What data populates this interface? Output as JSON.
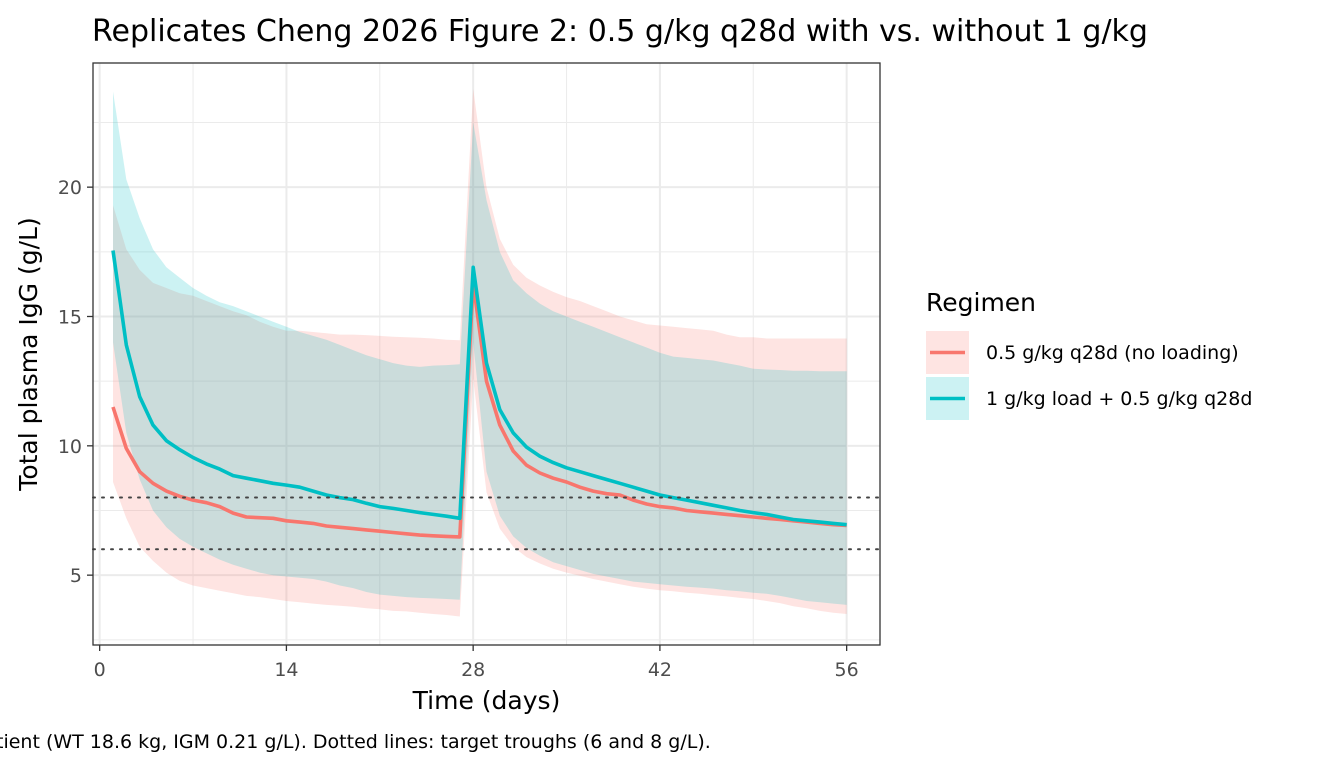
{
  "chart_data": {
    "type": "line",
    "title": "Replicates Cheng 2026 Figure 2: 0.5 g/kg q28d with vs. without 1 g/kg",
    "caption": "tient (WT 18.6 kg, IGM 0.21 g/L). Dotted lines: target troughs (6 and 8 g/L).",
    "xlabel": "Time (days)",
    "ylabel": "Total plasma IgG (g/L)",
    "xlim": [
      -0.5,
      58.5
    ],
    "ylim": [
      2.3,
      24.8
    ],
    "xticks": [
      0,
      14,
      28,
      42,
      56
    ],
    "xtick_labels": [
      "0",
      "14",
      "28",
      "42",
      "56"
    ],
    "yticks": [
      5,
      10,
      15,
      20
    ],
    "ytick_labels": [
      "5",
      "10",
      "15",
      "20"
    ],
    "reference_lines": [
      6,
      8
    ],
    "legend": {
      "title": "Regimen",
      "position": "right"
    },
    "x": [
      1,
      2,
      3,
      4,
      5,
      6,
      7,
      8,
      9,
      10,
      11,
      12,
      13,
      14,
      15,
      16,
      17,
      18,
      19,
      20,
      21,
      22,
      23,
      24,
      25,
      26,
      27,
      28,
      29,
      30,
      31,
      32,
      33,
      34,
      35,
      36,
      37,
      38,
      39,
      40,
      41,
      42,
      43,
      44,
      45,
      46,
      47,
      48,
      49,
      50,
      51,
      52,
      53,
      54,
      55,
      56
    ],
    "series": [
      {
        "name": "0.5 g/kg q28d (no loading)",
        "color": "#F8766D",
        "values": [
          11.5,
          9.9,
          9.0,
          8.55,
          8.25,
          8.05,
          7.9,
          7.8,
          7.65,
          7.4,
          7.25,
          7.22,
          7.2,
          7.1,
          7.05,
          7.0,
          6.9,
          6.85,
          6.8,
          6.75,
          6.7,
          6.65,
          6.6,
          6.55,
          6.52,
          6.5,
          6.48,
          16.3,
          12.5,
          10.8,
          9.8,
          9.25,
          8.95,
          8.75,
          8.6,
          8.4,
          8.25,
          8.15,
          8.1,
          7.9,
          7.75,
          7.65,
          7.6,
          7.5,
          7.45,
          7.4,
          7.35,
          7.3,
          7.25,
          7.2,
          7.15,
          7.1,
          7.05,
          7.0,
          6.95,
          6.92
        ],
        "lower": [
          8.6,
          7.2,
          6.1,
          5.55,
          5.1,
          4.78,
          4.6,
          4.5,
          4.4,
          4.3,
          4.2,
          4.15,
          4.08,
          4.0,
          3.95,
          3.9,
          3.85,
          3.82,
          3.78,
          3.72,
          3.68,
          3.62,
          3.6,
          3.55,
          3.5,
          3.46,
          3.4,
          12.6,
          8.2,
          6.8,
          6.1,
          5.7,
          5.45,
          5.25,
          5.1,
          4.98,
          4.85,
          4.75,
          4.65,
          4.55,
          4.48,
          4.42,
          4.38,
          4.32,
          4.28,
          4.22,
          4.18,
          4.12,
          4.08,
          4.0,
          3.92,
          3.8,
          3.72,
          3.62,
          3.55,
          3.5
        ],
        "upper": [
          19.3,
          17.6,
          16.8,
          16.3,
          16.1,
          15.9,
          15.8,
          15.6,
          15.4,
          15.2,
          15.05,
          14.8,
          14.6,
          14.45,
          14.45,
          14.4,
          14.35,
          14.3,
          14.3,
          14.28,
          14.25,
          14.22,
          14.2,
          14.18,
          14.15,
          14.1,
          14.08,
          23.8,
          20.0,
          18.0,
          17.0,
          16.5,
          16.2,
          15.95,
          15.75,
          15.6,
          15.4,
          15.2,
          15.0,
          14.85,
          14.7,
          14.65,
          14.6,
          14.55,
          14.5,
          14.45,
          14.3,
          14.2,
          14.2,
          14.15,
          14.15,
          14.15,
          14.15,
          14.15,
          14.15,
          14.15
        ]
      },
      {
        "name": "1 g/kg load + 0.5 g/kg q28d",
        "color": "#00BFC4",
        "values": [
          17.55,
          13.9,
          11.9,
          10.8,
          10.2,
          9.85,
          9.55,
          9.3,
          9.1,
          8.85,
          8.75,
          8.65,
          8.55,
          8.48,
          8.4,
          8.25,
          8.1,
          8.0,
          7.92,
          7.78,
          7.65,
          7.58,
          7.5,
          7.42,
          7.35,
          7.28,
          7.2,
          16.9,
          13.2,
          11.4,
          10.5,
          9.95,
          9.6,
          9.35,
          9.15,
          9.0,
          8.85,
          8.7,
          8.55,
          8.4,
          8.25,
          8.1,
          8.0,
          7.9,
          7.8,
          7.7,
          7.6,
          7.5,
          7.42,
          7.35,
          7.25,
          7.15,
          7.1,
          7.05,
          7.0,
          6.95
        ],
        "lower": [
          14.0,
          10.5,
          8.7,
          7.5,
          6.85,
          6.4,
          6.1,
          5.85,
          5.6,
          5.4,
          5.25,
          5.1,
          5.0,
          4.95,
          4.9,
          4.85,
          4.75,
          4.6,
          4.5,
          4.35,
          4.25,
          4.2,
          4.15,
          4.12,
          4.1,
          4.08,
          4.05,
          14.0,
          9.0,
          7.3,
          6.5,
          6.05,
          5.75,
          5.5,
          5.35,
          5.2,
          5.05,
          4.95,
          4.85,
          4.75,
          4.7,
          4.65,
          4.6,
          4.55,
          4.52,
          4.48,
          4.42,
          4.38,
          4.32,
          4.28,
          4.2,
          4.1,
          4.0,
          3.95,
          3.9,
          3.85
        ],
        "upper": [
          23.7,
          20.3,
          18.8,
          17.6,
          16.9,
          16.5,
          16.1,
          15.8,
          15.55,
          15.4,
          15.2,
          15.0,
          14.8,
          14.6,
          14.4,
          14.25,
          14.1,
          13.9,
          13.7,
          13.5,
          13.35,
          13.2,
          13.1,
          13.05,
          13.1,
          13.12,
          13.15,
          22.5,
          19.5,
          17.5,
          16.4,
          15.9,
          15.5,
          15.2,
          15.0,
          14.8,
          14.6,
          14.4,
          14.2,
          14.0,
          13.8,
          13.6,
          13.45,
          13.4,
          13.35,
          13.3,
          13.2,
          13.1,
          12.98,
          12.95,
          12.93,
          12.9,
          12.9,
          12.88,
          12.88,
          12.88
        ]
      }
    ]
  }
}
